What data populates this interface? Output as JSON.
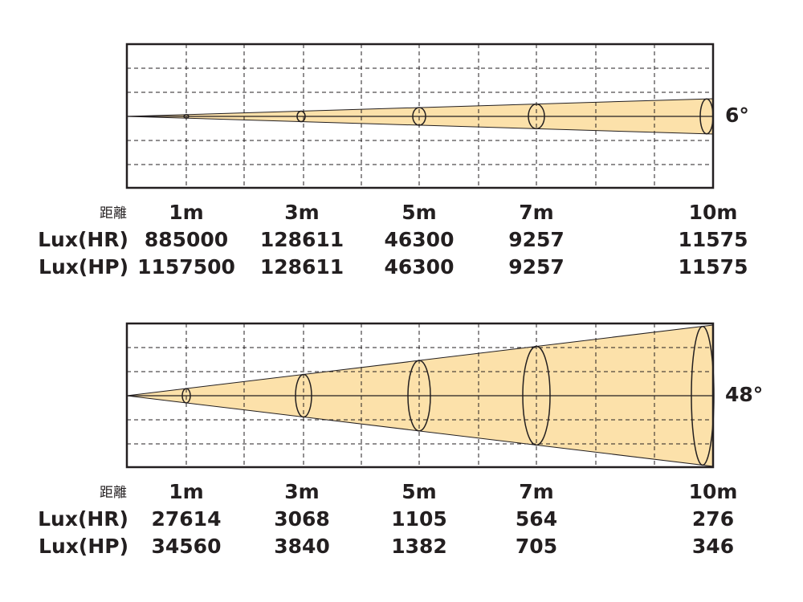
{
  "panels": [
    {
      "angle": "6°",
      "distance_label": "距離",
      "distances": [
        "1m",
        "3m",
        "5m",
        "7m",
        "10m"
      ],
      "rows": [
        {
          "label": "Lux(HR)",
          "values": [
            885000,
            128611,
            46300,
            9257,
            11575
          ]
        },
        {
          "label": "Lux(HP)",
          "values": [
            1157500,
            128611,
            46300,
            9257,
            11575
          ]
        }
      ]
    },
    {
      "angle": "48°",
      "distance_label": "距離",
      "distances": [
        "1m",
        "3m",
        "5m",
        "7m",
        "10m"
      ],
      "rows": [
        {
          "label": "Lux(HR)",
          "values": [
            27614,
            3068,
            1105,
            564,
            276
          ]
        },
        {
          "label": "Lux(HP)",
          "values": [
            34560,
            3840,
            1382,
            705,
            346
          ]
        }
      ]
    }
  ]
}
